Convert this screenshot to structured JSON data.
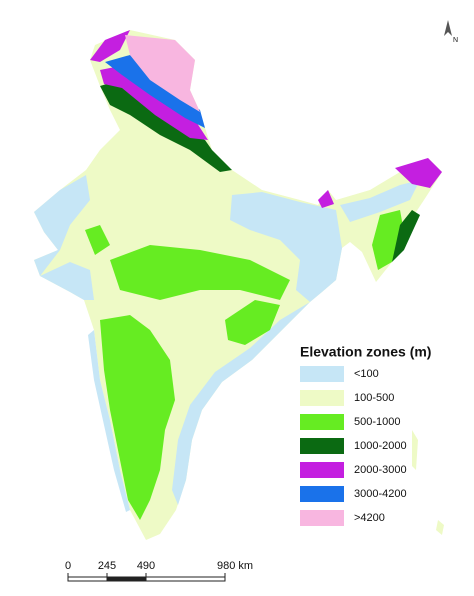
{
  "legend": {
    "title": "Elevation zones (m)",
    "items": [
      {
        "label": "<100",
        "color": "#c6e6f6"
      },
      {
        "label": "100-500",
        "color": "#eefac6"
      },
      {
        "label": "500-1000",
        "color": "#66ec22"
      },
      {
        "label": "1000-2000",
        "color": "#0b6a12"
      },
      {
        "label": "2000-3000",
        "color": "#c41fe0"
      },
      {
        "label": "3000-4200",
        "color": "#1a72ea"
      },
      {
        "label": ">4200",
        "color": "#f8b6e0"
      }
    ]
  },
  "scale_bar": {
    "labels": [
      "0",
      "245",
      "490",
      "980 km"
    ]
  },
  "north_arrow": {
    "label": "N"
  }
}
